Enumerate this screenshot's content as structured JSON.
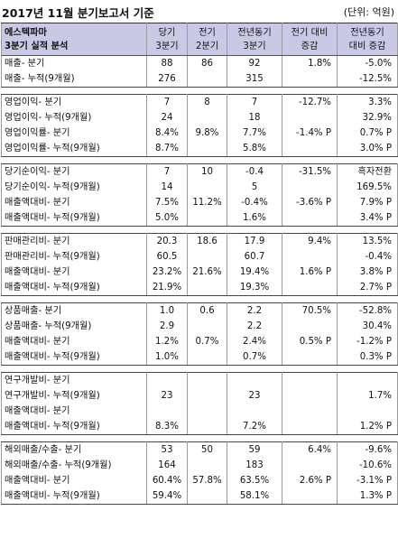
{
  "title": "2017년 11월 분기보고서 기준",
  "unit": "(단위: 억원)",
  "header": {
    "company": "에스텍파마",
    "subtitle": "3분기 실적 분석",
    "col1_line1": "당기",
    "col1_line2": "3분기",
    "col2_line1": "전기",
    "col2_line2": "2분기",
    "col3_line1": "전년동기",
    "col3_line2": "3분기",
    "col4_line1": "전기 대비",
    "col4_line2": "증감",
    "col5_line1": "전년동기",
    "col5_line2": "대비 증감"
  },
  "groups": [
    {
      "rows": [
        [
          "매출- 분기",
          "88",
          "86",
          "92",
          "1.8%",
          "-5.0%"
        ],
        [
          "매출- 누적(9개월)",
          "276",
          "",
          "315",
          "",
          "-12.5%"
        ]
      ]
    },
    {
      "rows": [
        [
          "영업이익- 분기",
          "7",
          "8",
          "7",
          "-12.7%",
          "3.3%"
        ],
        [
          "영업이익- 누적(9개월)",
          "24",
          "",
          "18",
          "",
          "32.9%"
        ],
        [
          "영업이익률- 분기",
          "8.4%",
          "9.8%",
          "7.7%",
          "-1.4% P",
          "0.7% P"
        ],
        [
          "영업이익률- 누적(9개월)",
          "8.7%",
          "",
          "5.8%",
          "",
          "3.0% P"
        ]
      ]
    },
    {
      "rows": [
        [
          "당기순이익- 분기",
          "7",
          "10",
          "-0.4",
          "-31.5%",
          "흑자전환"
        ],
        [
          "당기순이익- 누적(9개월)",
          "14",
          "",
          "5",
          "",
          "169.5%"
        ],
        [
          "매출액대비- 분기",
          "7.5%",
          "11.2%",
          "-0.4%",
          "-3.6% P",
          "7.9% P"
        ],
        [
          "매출액대비- 누적(9개월)",
          "5.0%",
          "",
          "1.6%",
          "",
          "3.4% P"
        ]
      ]
    },
    {
      "rows": [
        [
          "판매관리비- 분기",
          "20.3",
          "18.6",
          "17.9",
          "9.4%",
          "13.5%"
        ],
        [
          "판매관리비- 누적(9개월)",
          "60.5",
          "",
          "60.7",
          "",
          "-0.4%"
        ],
        [
          "매출액대비- 분기",
          "23.2%",
          "21.6%",
          "19.4%",
          "1.6% P",
          "3.8% P"
        ],
        [
          "매출액대비- 누적(9개월)",
          "21.9%",
          "",
          "19.3%",
          "",
          "2.7% P"
        ]
      ]
    },
    {
      "rows": [
        [
          "상품매출- 분기",
          "1.0",
          "0.6",
          "2.2",
          "70.5%",
          "-52.8%"
        ],
        [
          "상품매출- 누적(9개월)",
          "2.9",
          "",
          "2.2",
          "",
          "30.4%"
        ],
        [
          "매출액대비- 분기",
          "1.2%",
          "0.7%",
          "2.4%",
          "0.5% P",
          "-1.2% P"
        ],
        [
          "매출액대비- 누적(9개월)",
          "1.0%",
          "",
          "0.7%",
          "",
          "0.3% P"
        ]
      ]
    },
    {
      "rows": [
        [
          "연구개발비- 분기",
          "",
          "",
          "",
          "",
          ""
        ],
        [
          "연구개발비- 누적(9개월)",
          "23",
          "",
          "23",
          "",
          "1.7%"
        ],
        [
          "매출액대비- 분기",
          "",
          "",
          "",
          "",
          ""
        ],
        [
          "매출액대비- 누적(9개월)",
          "8.3%",
          "",
          "7.2%",
          "",
          "1.2% P"
        ]
      ]
    },
    {
      "rows": [
        [
          "해외매출/수출- 분기",
          "53",
          "50",
          "59",
          "6.4%",
          "-9.6%"
        ],
        [
          "해외매출/수출- 누적(9개월)",
          "164",
          "",
          "183",
          "",
          "-10.6%"
        ],
        [
          "매출액대비- 분기",
          "60.4%",
          "57.8%",
          "63.5%",
          "2.6% P",
          "-3.1% P"
        ],
        [
          "매출액대비- 누적(9개월)",
          "59.4%",
          "",
          "58.1%",
          "",
          "1.3% P"
        ]
      ]
    }
  ]
}
